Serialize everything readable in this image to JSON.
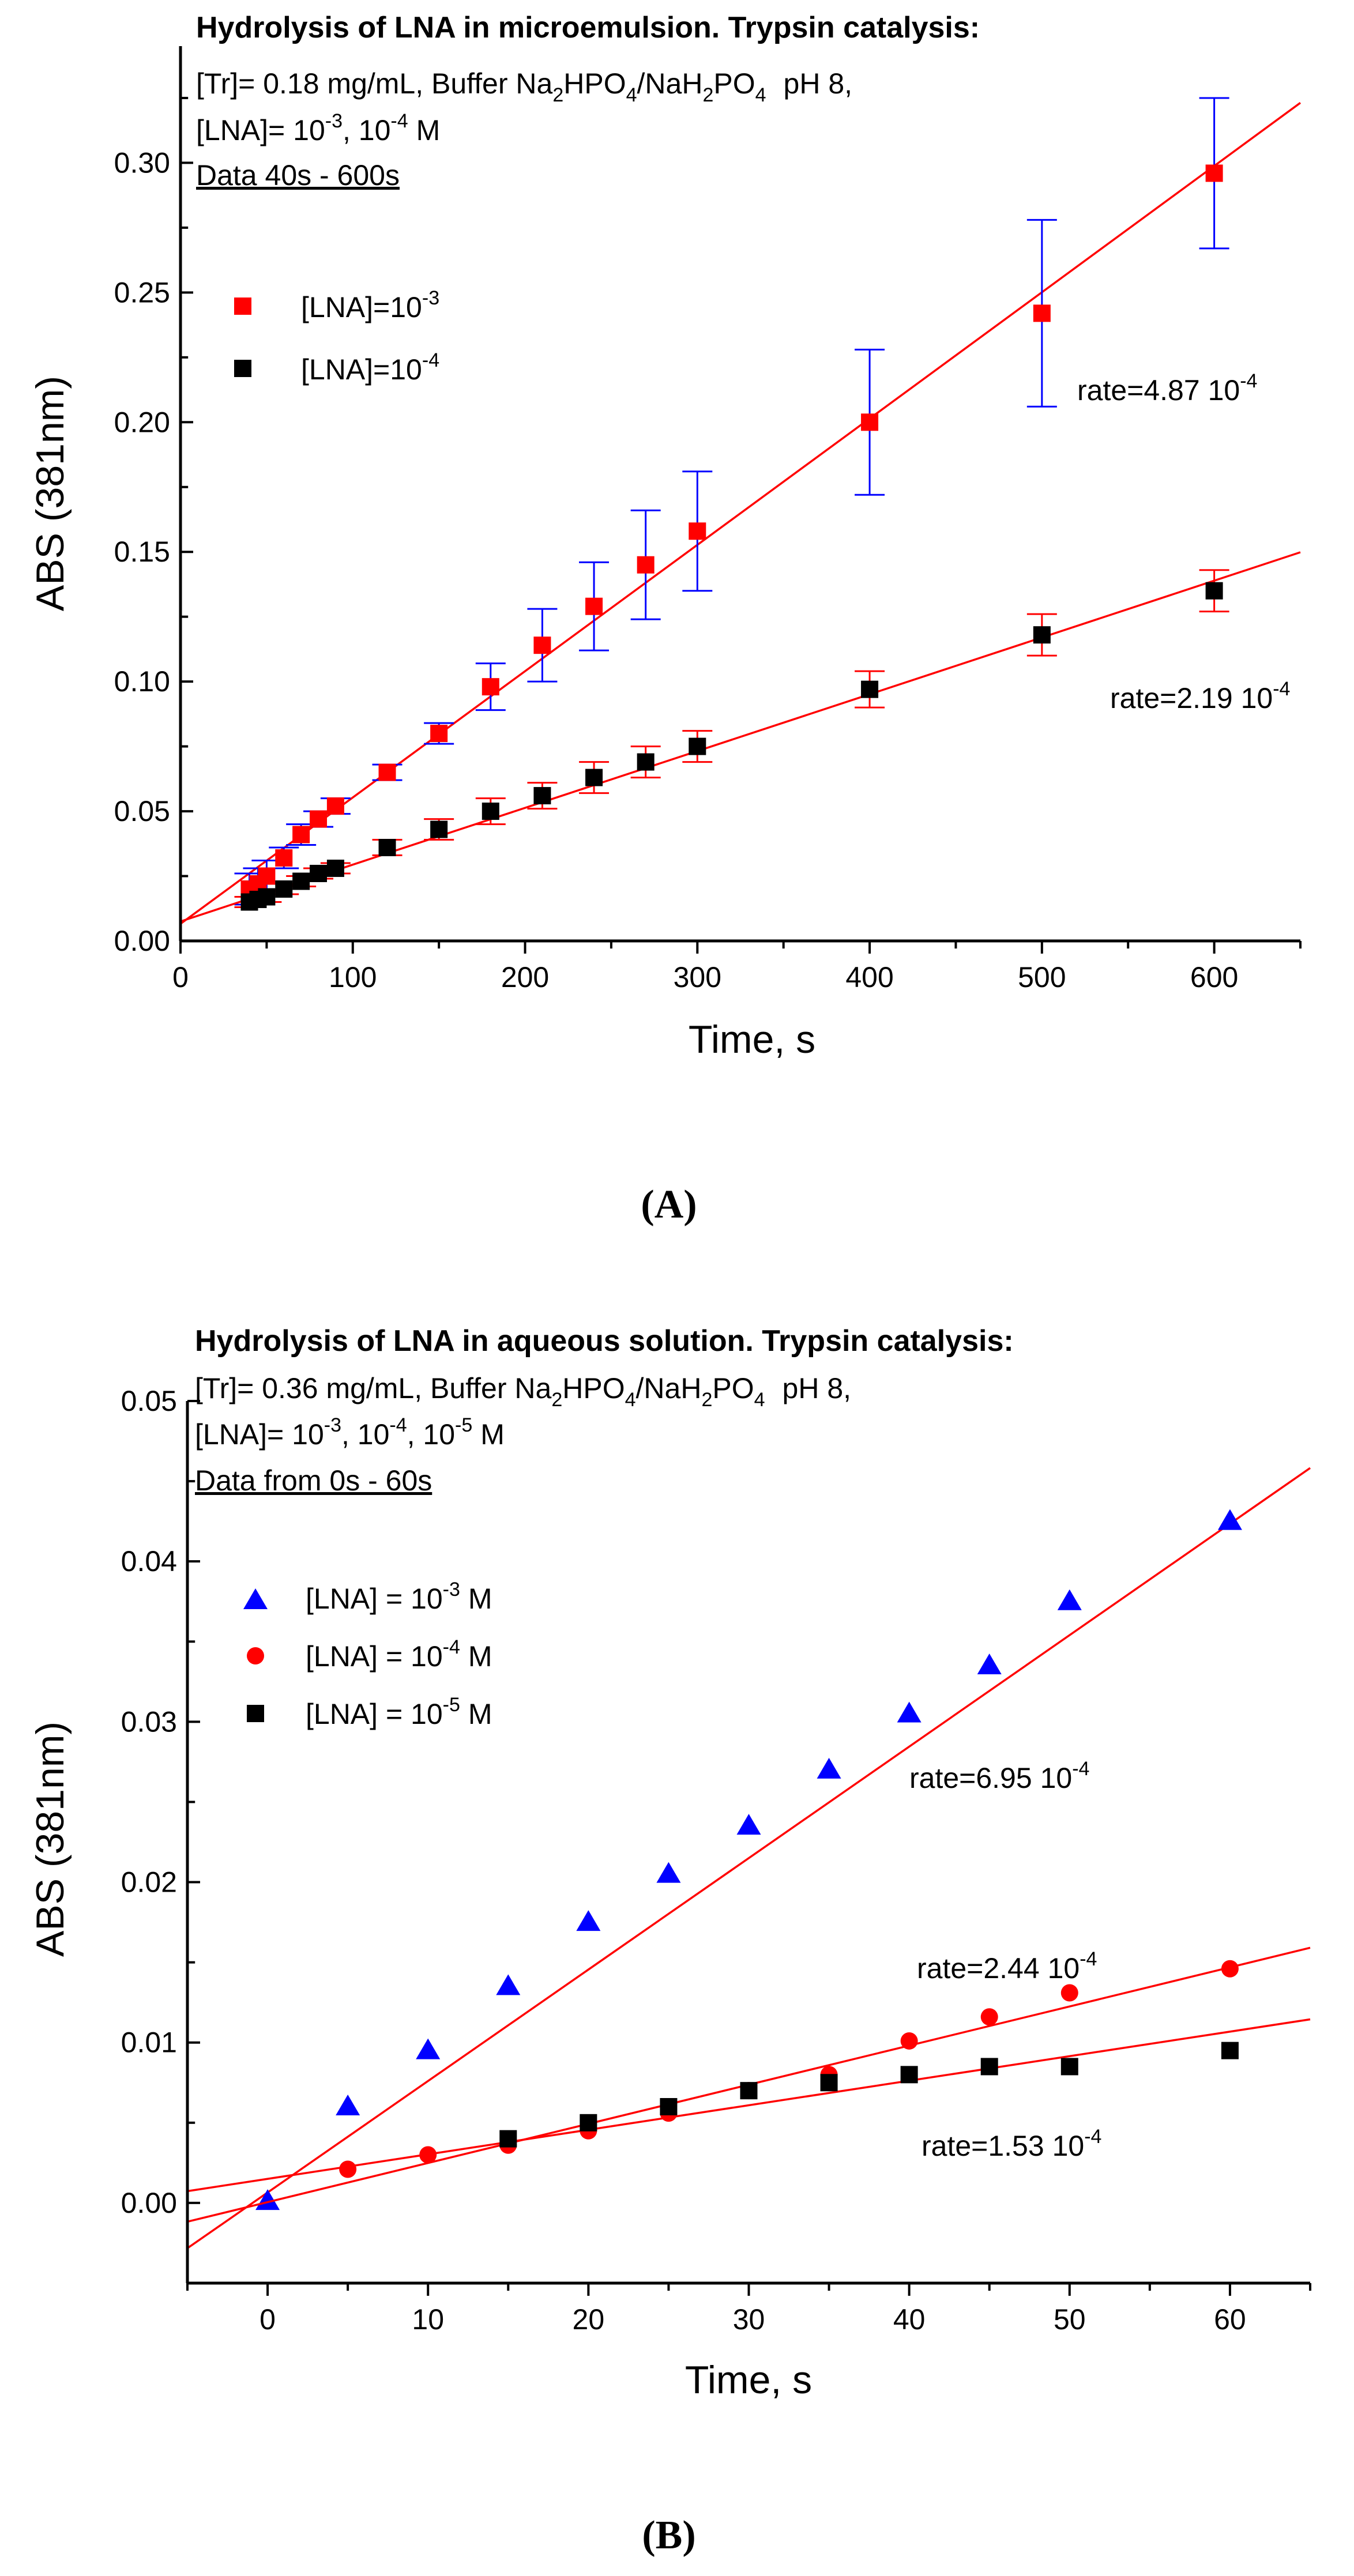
{
  "chart_data": [
    {
      "panel": "(A)",
      "type": "scatter",
      "title": "Hydrolysis of LNA in microemulsion. Trypsin catalysis:",
      "conditions": {
        "tr_prefix": "[Tr]= 0.18 mg/mL, Buffer Na",
        "buffer_rest": "pH 8,",
        "lna_prefix": "[LNA]= 10",
        "lna_exp1": "-3",
        "lna_mid": ", 10",
        "lna_exp2": "-4",
        "lna_unit": "M",
        "data_range": "Data 40s - 600s"
      },
      "xlabel": "Time, s",
      "ylabel": "ABS (381nm)",
      "xlim": [
        0,
        650
      ],
      "ylim": [
        0,
        0.345
      ],
      "xticks": [
        "0",
        "100",
        "200",
        "300",
        "400",
        "500",
        "600"
      ],
      "yticks": [
        "0.00",
        "0.05",
        "0.10",
        "0.15",
        "0.20",
        "0.25",
        "0.30"
      ],
      "series": [
        {
          "name": "[LNA]=10",
          "exp": "-3",
          "marker": "square",
          "color": "#ff0000",
          "error_color": "#0000ff",
          "x": [
            40,
            45,
            50,
            60,
            70,
            80,
            90,
            120,
            150,
            180,
            210,
            240,
            270,
            300,
            400,
            500,
            600
          ],
          "y": [
            0.02,
            0.022,
            0.025,
            0.032,
            0.041,
            0.047,
            0.052,
            0.065,
            0.08,
            0.098,
            0.114,
            0.129,
            0.145,
            0.158,
            0.2,
            0.242,
            0.296
          ],
          "err": [
            0.006,
            0.006,
            0.006,
            0.004,
            0.004,
            0.003,
            0.003,
            0.003,
            0.004,
            0.009,
            0.014,
            0.017,
            0.021,
            0.023,
            0.028,
            0.036,
            0.029
          ],
          "fit": {
            "slope": 0.000487,
            "intercept": 0.0066,
            "x_range": [
              0,
              650
            ]
          },
          "rate_label": "rate=4.87 10",
          "rate_exp": "-4"
        },
        {
          "name": "[LNA]=10",
          "exp": "-4",
          "marker": "square",
          "color": "#000000",
          "error_color": "#ff0000",
          "x": [
            40,
            45,
            50,
            60,
            70,
            80,
            90,
            120,
            150,
            180,
            210,
            240,
            270,
            300,
            400,
            500,
            600
          ],
          "y": [
            0.015,
            0.016,
            0.017,
            0.02,
            0.023,
            0.026,
            0.028,
            0.036,
            0.043,
            0.05,
            0.056,
            0.063,
            0.069,
            0.075,
            0.097,
            0.118,
            0.135
          ],
          "err": [
            0.002,
            0.002,
            0.002,
            0.002,
            0.002,
            0.002,
            0.002,
            0.003,
            0.004,
            0.005,
            0.005,
            0.006,
            0.006,
            0.006,
            0.007,
            0.008,
            0.008
          ],
          "fit": {
            "slope": 0.000219,
            "intercept": 0.0075,
            "x_range": [
              0,
              650
            ]
          },
          "rate_label": "rate=2.19 10",
          "rate_exp": "-4"
        }
      ]
    },
    {
      "panel": "(B)",
      "type": "scatter",
      "title": "Hydrolysis of LNA in aqueous solution. Trypsin catalysis:",
      "conditions": {
        "tr_prefix": "[Tr]= 0.36 mg/mL, Buffer Na",
        "buffer_rest": "pH 8,",
        "lna_prefix": "[LNA]= 10",
        "lna_exp1": "-3",
        "lna_mid": ", 10",
        "lna_exp2": "-4",
        "lna_mid2": ", 10",
        "lna_exp3": "-5",
        "lna_unit": "M",
        "data_range": "Data from 0s - 60s"
      },
      "xlabel": "Time, s",
      "ylabel": "ABS (381nm)",
      "xlim": [
        -5,
        65
      ],
      "ylim": [
        -0.005,
        0.05
      ],
      "xticks": [
        "0",
        "10",
        "20",
        "30",
        "40",
        "50",
        "60"
      ],
      "yticks": [
        "0.00",
        "0.01",
        "0.02",
        "0.03",
        "0.04",
        "0.05"
      ],
      "series": [
        {
          "name": "[LNA] = 10",
          "exp": "-3",
          "unit": "M",
          "marker": "triangle",
          "color": "#0000ff",
          "x": [
            0,
            5,
            10,
            15,
            20,
            25,
            30,
            35,
            40,
            45,
            50,
            60
          ],
          "y": [
            0.0001,
            0.006,
            0.0095,
            0.0135,
            0.0175,
            0.0205,
            0.0235,
            0.027,
            0.0305,
            0.0335,
            0.0375,
            0.0425
          ],
          "fit": {
            "slope": 0.000695,
            "intercept": 0.00065,
            "x_range": [
              -5,
              65
            ]
          },
          "rate_label": "rate=6.95 10",
          "rate_exp": "-4"
        },
        {
          "name": "[LNA] = 10",
          "exp": "-4",
          "unit": "M",
          "marker": "circle",
          "color": "#ff0000",
          "x": [
            5,
            10,
            15,
            20,
            25,
            30,
            35,
            40,
            45,
            50,
            60
          ],
          "y": [
            0.0021,
            0.003,
            0.0036,
            0.0045,
            0.0056,
            0.007,
            0.008,
            0.0101,
            0.0116,
            0.0131,
            0.0146
          ],
          "fit": {
            "slope": 0.000244,
            "intercept": 5e-05,
            "x_range": [
              -5,
              65
            ]
          },
          "rate_label": "rate=2.44 10",
          "rate_exp": "-4"
        },
        {
          "name": "[LNA] = 10",
          "exp": "-5",
          "unit": "M",
          "marker": "square",
          "color": "#000000",
          "x": [
            15,
            20,
            25,
            30,
            35,
            40,
            45,
            50,
            60
          ],
          "y": [
            0.004,
            0.005,
            0.006,
            0.007,
            0.0075,
            0.008,
            0.0085,
            0.0085,
            0.0095
          ],
          "fit": {
            "slope": 0.000153,
            "intercept": 0.0015,
            "x_range": [
              -5,
              65
            ]
          },
          "rate_label": "rate=1.53 10",
          "rate_exp": "-4"
        }
      ]
    }
  ],
  "colors": {
    "fit_line": "#ff0000",
    "axis": "#000000"
  }
}
